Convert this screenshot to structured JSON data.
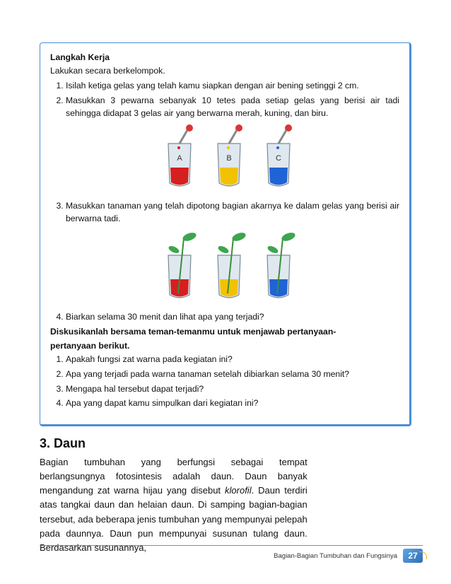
{
  "activity": {
    "heading": "Langkah Kerja",
    "intro": "Lakukan secara berkelompok.",
    "steps_a": [
      "Isilah ketiga gelas yang telah kamu siapkan dengan air bening setinggi 2 cm.",
      "Masukkan 3 pewarna sebanyak 10 tetes pada setiap gelas yang berisi air tadi sehingga didapat 3 gelas air yang berwarna merah, kuning, dan biru."
    ],
    "step3": "Masukkan tanaman yang telah dipotong bagian akarnya ke dalam gelas yang berisi air berwarna tadi.",
    "step4": "Biarkan selama 30 menit dan lihat apa yang terjadi?",
    "discuss1": "Diskusikanlah bersama teman-temanmu untuk menjawab pertanyaan-",
    "discuss2": "pertanyaan berikut.",
    "questions": [
      "Apakah fungsi zat warna pada kegiatan ini?",
      "Apa yang terjadi pada warna tanaman setelah dibiarkan selama 30 menit?",
      "Mengapa hal tersebut dapat terjadi?",
      "Apa yang dapat kamu simpulkan dari kegiatan ini?"
    ]
  },
  "illus1": {
    "labels": [
      "A",
      "B",
      "C"
    ],
    "liquid_colors": [
      "#d61f1f",
      "#f2c200",
      "#1f63d6"
    ],
    "dropper_colors": [
      "#d61f1f",
      "#f2c200",
      "#1f63d6"
    ],
    "glass_outline": "#7a8a99",
    "glass_fill": "#dfe8ef"
  },
  "illus2": {
    "liquid_colors": [
      "#d61f1f",
      "#f2c200",
      "#1f63d6"
    ],
    "plant_stem": "#3a8f3a",
    "plant_leaf": "#3da54d",
    "glass_outline": "#7a8a99",
    "glass_fill": "#dfe8ef"
  },
  "section": {
    "title": "3. Daun",
    "body": "Bagian tumbuhan yang berfungsi sebagai tempat berlangsungnya fotosintesis adalah daun. Daun banyak mengandung zat warna hijau yang disebut <span class=\"em\">klorofil</span>. Daun terdiri atas tangkai daun dan helaian daun. Di samping bagian-bagian tersebut, ada beberapa jenis tumbuhan yang mempunyai pelepah pada daunnya. Daun pun mempunyai susunan tulang daun. Berdasarkan susunannya,"
  },
  "footer": {
    "chapter": "Bagian-Bagian Tumbuhan dan Fungsinya",
    "page": "27"
  }
}
